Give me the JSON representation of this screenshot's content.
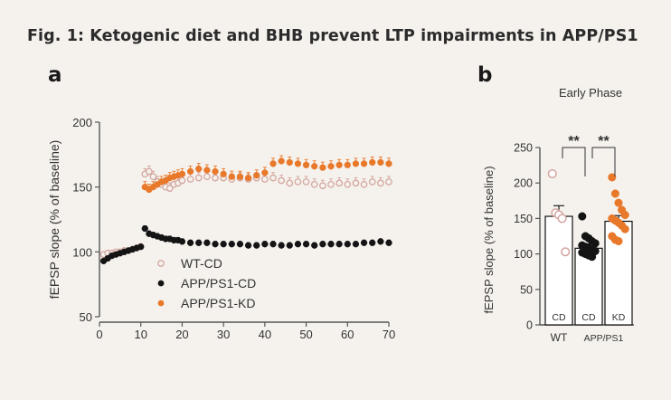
{
  "figure": {
    "title": "Fig. 1: Ketogenic diet and BHB prevent LTP impairments in APP/PS1",
    "panel_a_letter": "a",
    "panel_b_letter": "b"
  },
  "colors": {
    "background": "#f5f2ed",
    "wt_cd": "#d4a6a0",
    "app_cd": "#141414",
    "app_kd": "#e8782a",
    "axis": "#555555"
  },
  "chart_data": [
    {
      "type": "scatter",
      "panel": "a",
      "ylabel": "fEPSP slope (% of baseline)",
      "xlabel": "",
      "xlim": [
        0,
        70
      ],
      "ylim": [
        50,
        200
      ],
      "xticks": [
        0,
        10,
        20,
        30,
        40,
        50,
        60,
        70
      ],
      "yticks": [
        50,
        100,
        150,
        200
      ],
      "legend_position": "lower-middle",
      "series": [
        {
          "name": "WT-CD",
          "marker": "open-circle",
          "color": "#d4a6a0",
          "x": [
            1,
            2,
            3,
            4,
            5,
            6,
            7,
            8,
            9,
            10,
            11,
            12,
            13,
            14,
            15,
            16,
            17,
            18,
            19,
            20,
            22,
            24,
            26,
            28,
            30,
            32,
            34,
            36,
            38,
            40,
            42,
            44,
            46,
            48,
            50,
            52,
            54,
            56,
            58,
            60,
            62,
            64,
            66,
            68,
            70
          ],
          "y": [
            98,
            99,
            99,
            100,
            100,
            101,
            101,
            102,
            103,
            104,
            160,
            162,
            158,
            154,
            152,
            150,
            149,
            152,
            153,
            155,
            156,
            157,
            158,
            157,
            157,
            156,
            157,
            156,
            157,
            156,
            157,
            155,
            153,
            154,
            154,
            152,
            151,
            152,
            153,
            152,
            153,
            152,
            154,
            153,
            154
          ]
        },
        {
          "name": "APP/PS1-CD",
          "marker": "filled-circle",
          "color": "#141414",
          "x": [
            1,
            2,
            3,
            4,
            5,
            6,
            7,
            8,
            9,
            10,
            11,
            12,
            13,
            14,
            15,
            16,
            17,
            18,
            19,
            20,
            22,
            24,
            26,
            28,
            30,
            32,
            34,
            36,
            38,
            40,
            42,
            44,
            46,
            48,
            50,
            52,
            54,
            56,
            58,
            60,
            62,
            64,
            66,
            68,
            70
          ],
          "y": [
            93,
            95,
            97,
            98,
            99,
            100,
            101,
            102,
            103,
            104,
            118,
            114,
            113,
            112,
            111,
            110,
            110,
            109,
            109,
            108,
            107,
            107,
            107,
            106,
            106,
            106,
            106,
            105,
            105,
            106,
            106,
            105,
            105,
            106,
            106,
            105,
            106,
            106,
            106,
            106,
            106,
            107,
            107,
            108,
            107
          ]
        },
        {
          "name": "APP/PS1-KD",
          "marker": "filled-circle",
          "color": "#e8782a",
          "x": [
            11,
            12,
            13,
            14,
            15,
            16,
            17,
            18,
            19,
            20,
            22,
            24,
            26,
            28,
            30,
            32,
            34,
            36,
            38,
            40,
            42,
            44,
            46,
            48,
            50,
            52,
            54,
            56,
            58,
            60,
            62,
            64,
            66,
            68,
            70
          ],
          "y": [
            150,
            148,
            150,
            152,
            154,
            155,
            157,
            158,
            159,
            160,
            162,
            164,
            163,
            162,
            160,
            158,
            158,
            157,
            159,
            161,
            168,
            170,
            169,
            168,
            167,
            166,
            165,
            166,
            167,
            167,
            168,
            168,
            169,
            169,
            168
          ]
        }
      ]
    },
    {
      "type": "bar",
      "panel": "b",
      "title": "Early Phase",
      "ylabel": "fEPSP slope (% of baseline)",
      "ylim": [
        0,
        250
      ],
      "yticks": [
        0,
        50,
        100,
        150,
        200,
        250
      ],
      "categories": [
        "CD",
        "CD",
        "KD"
      ],
      "group_labels": [
        "WT",
        "APP/PS1"
      ],
      "values": [
        153,
        108,
        146
      ],
      "errors": [
        15,
        6,
        8
      ],
      "bar_colors": [
        "#d4a6a0",
        "#141414",
        "#e8782a"
      ],
      "points": [
        [
          213,
          158,
          155,
          150,
          103
        ],
        [
          153,
          125,
          122,
          118,
          115,
          112,
          110,
          108,
          106,
          104,
          102,
          100,
          98,
          96
        ],
        [
          208,
          185,
          172,
          162,
          155,
          150,
          147,
          144,
          140,
          135,
          125,
          120,
          118
        ]
      ],
      "significance": [
        {
          "pair": [
            0,
            1
          ],
          "label": "**"
        },
        {
          "pair": [
            1,
            2
          ],
          "label": "**"
        }
      ]
    }
  ]
}
